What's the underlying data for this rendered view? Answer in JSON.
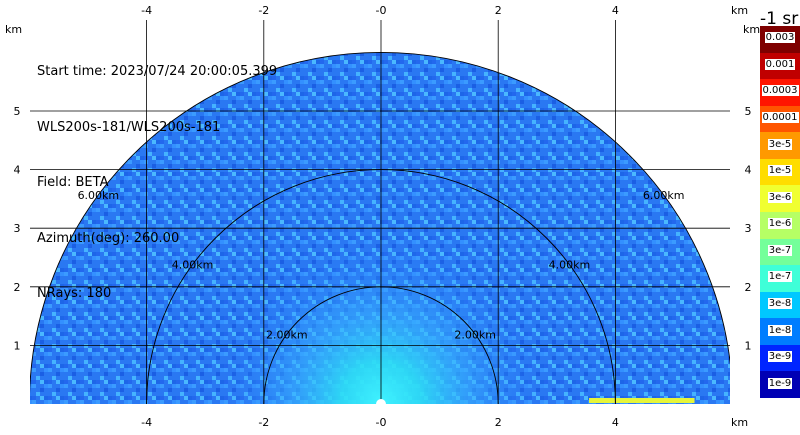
{
  "info_lines": [
    "Start time: 2023/07/24 20:00:05.399",
    "WLS200s-181/WLS200s-181",
    "Field: BETA",
    "Azimuth(deg): 260.00",
    "NRays: 180"
  ],
  "axes": {
    "x_ticks": [
      "-4",
      "-2",
      "-0",
      "2",
      "4"
    ],
    "x_tick_values": [
      -4,
      -2,
      0,
      2,
      4
    ],
    "y_ticks": [
      "1",
      "2",
      "3",
      "4",
      "5"
    ],
    "y_tick_values": [
      1,
      2,
      3,
      4,
      5
    ],
    "unit": "km",
    "x_range": [
      -6,
      6
    ],
    "y_range": [
      0,
      6
    ]
  },
  "rings": [
    {
      "radius_km": 2,
      "label": "2.00km"
    },
    {
      "radius_km": 4,
      "label": "4.00km"
    },
    {
      "radius_km": 6,
      "label": "6.00km"
    }
  ],
  "colorbar": {
    "title": "-1 sr",
    "labels": [
      "0.003",
      "0.001",
      "0.0003",
      "0.0001",
      "3e-5",
      "1e-5",
      "3e-6",
      "1e-6",
      "3e-7",
      "1e-7",
      "3e-8",
      "1e-8",
      "3e-9",
      "1e-9"
    ],
    "colors": [
      "#7f0000",
      "#c00000",
      "#ff1500",
      "#ff5500",
      "#ff9900",
      "#ffdd00",
      "#f0ff30",
      "#b6ff65",
      "#74ff9a",
      "#3fffd8",
      "#00c8ff",
      "#007dff",
      "#0025ff",
      "#0000b4"
    ]
  },
  "field_colors": {
    "deep": "#1a55e6",
    "mid": "#2a7fff",
    "light": "#3aa4ff",
    "cyan": "#2ee0ff",
    "yellow": "#e6f53a"
  }
}
